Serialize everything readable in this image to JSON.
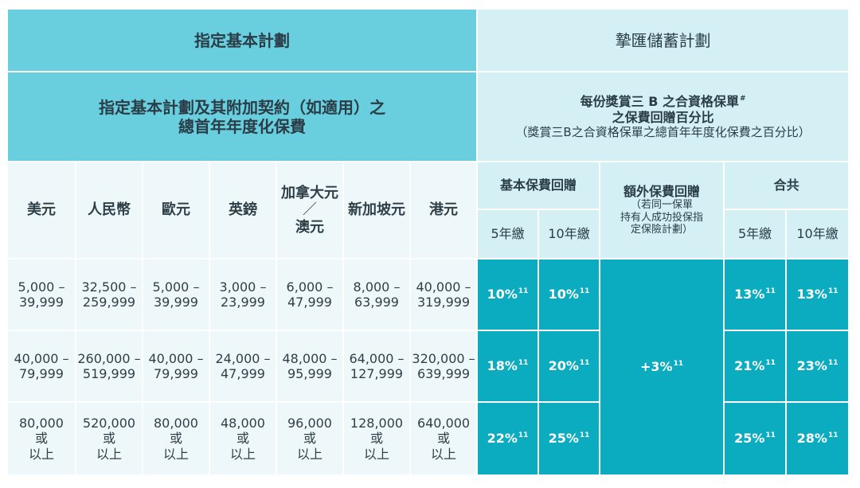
{
  "header": {
    "left_title": "指定基本計劃",
    "right_title": "摯匯儲蓄計劃"
  },
  "subheader": {
    "left_line1": "指定基本計劃及其附加契約（如適用）之",
    "left_line2": "總首年年度化保費",
    "right_line1": "每份獎賞三 B 之合資格保單",
    "right_line1_sup": "#",
    "right_line2": "之保費回贈百分比",
    "right_line3": "（獎賞三B之合資格保單之總首年年度化保費之百分比）"
  },
  "currencies": [
    {
      "line1": "美元",
      "line2": "",
      "line3": ""
    },
    {
      "line1": "人民幣",
      "line2": "",
      "line3": ""
    },
    {
      "line1": "歐元",
      "line2": "",
      "line3": ""
    },
    {
      "line1": "英鎊",
      "line2": "",
      "line3": ""
    },
    {
      "line1": "加拿大元",
      "line2": "／",
      "line3": "澳元"
    },
    {
      "line1": "新加坡元",
      "line2": "",
      "line3": ""
    },
    {
      "line1": "港元",
      "line2": "",
      "line3": ""
    }
  ],
  "rebate_headers": {
    "basic": "基本保費回贈",
    "extra_line1": "額外保費回贈",
    "extra_line2": "（若同一保單",
    "extra_line3": "持有人成功投保指",
    "extra_line4": "定保險計劃）",
    "total": "合共",
    "five_year": "5年繳",
    "ten_year": "10年繳"
  },
  "rows": [
    {
      "ranges": [
        [
          "5,000 –",
          "39,999",
          ""
        ],
        [
          "32,500 –",
          "259,999",
          ""
        ],
        [
          "5,000 –",
          "39,999",
          ""
        ],
        [
          "3,000 –",
          "23,999",
          ""
        ],
        [
          "6,000 –",
          "47,999",
          ""
        ],
        [
          "8,000 –",
          "63,999",
          ""
        ],
        [
          "40,000 –",
          "319,999",
          ""
        ]
      ],
      "basic5": "10%",
      "basic10": "10%",
      "total5": "13%",
      "total10": "13%"
    },
    {
      "ranges": [
        [
          "40,000 –",
          "79,999",
          ""
        ],
        [
          "260,000 –",
          "519,999",
          ""
        ],
        [
          "40,000 –",
          "79,999",
          ""
        ],
        [
          "24,000 –",
          "47,999",
          ""
        ],
        [
          "48,000 –",
          "95,999",
          ""
        ],
        [
          "64,000 –",
          "127,999",
          ""
        ],
        [
          "320,000 –",
          "639,999",
          ""
        ]
      ],
      "basic5": "18%",
      "basic10": "20%",
      "total5": "21%",
      "total10": "23%"
    },
    {
      "ranges": [
        [
          "80,000",
          "或",
          "以上"
        ],
        [
          "520,000",
          "或",
          "以上"
        ],
        [
          "80,000",
          "或",
          "以上"
        ],
        [
          "48,000",
          "或",
          "以上"
        ],
        [
          "96,000",
          "或",
          "以上"
        ],
        [
          "128,000",
          "或",
          "以上"
        ],
        [
          "640,000",
          "或",
          "以上"
        ]
      ],
      "basic5": "22%",
      "basic10": "25%",
      "total5": "25%",
      "total10": "28%"
    }
  ],
  "extra_rebate": "+3%",
  "footnote_ref": "11"
}
